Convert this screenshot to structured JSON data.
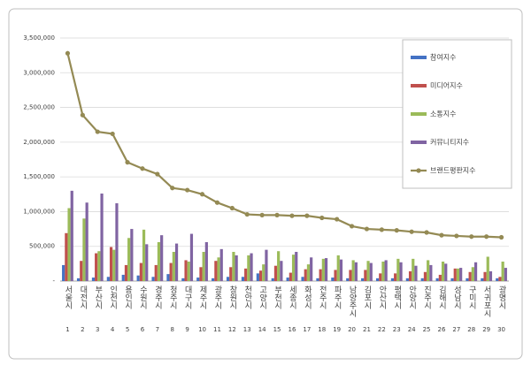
{
  "chart_data": {
    "type": "bar",
    "categories": [
      "서울시",
      "대전시",
      "부산시",
      "인천시",
      "용인시",
      "수원시",
      "경주시",
      "청주시",
      "대구시",
      "제주시",
      "광주시",
      "창원시",
      "천안시",
      "고양시",
      "부천시",
      "세종시",
      "화성시",
      "전주시",
      "파주시",
      "남양주시",
      "김포시",
      "안산시",
      "평택시",
      "안양시",
      "진주시",
      "김해시",
      "성남시",
      "구미시",
      "서귀포시",
      "광명시"
    ],
    "ranks": [
      1,
      2,
      3,
      4,
      5,
      6,
      7,
      8,
      9,
      10,
      11,
      12,
      13,
      14,
      15,
      16,
      17,
      18,
      19,
      20,
      21,
      22,
      23,
      24,
      25,
      26,
      27,
      28,
      29,
      30
    ],
    "series": [
      {
        "name": "참여지수",
        "color": "#4472c4",
        "values": [
          230000,
          40000,
          50000,
          60000,
          90000,
          80000,
          60000,
          100000,
          40000,
          50000,
          40000,
          60000,
          60000,
          110000,
          40000,
          50000,
          60000,
          40000,
          50000,
          40000,
          40000,
          40000,
          40000,
          40000,
          40000,
          40000,
          40000,
          40000,
          40000,
          40000
        ]
      },
      {
        "name": "미디어지수",
        "color": "#c0504d",
        "values": [
          690000,
          290000,
          400000,
          490000,
          230000,
          260000,
          230000,
          260000,
          300000,
          200000,
          290000,
          200000,
          180000,
          150000,
          220000,
          120000,
          170000,
          170000,
          160000,
          160000,
          160000,
          110000,
          110000,
          140000,
          130000,
          90000,
          180000,
          130000,
          130000,
          60000
        ]
      },
      {
        "name": "소통지수",
        "color": "#9bbb59",
        "values": [
          1050000,
          900000,
          430000,
          450000,
          620000,
          740000,
          560000,
          420000,
          280000,
          420000,
          340000,
          420000,
          370000,
          240000,
          430000,
          380000,
          240000,
          320000,
          370000,
          300000,
          290000,
          280000,
          320000,
          320000,
          300000,
          280000,
          180000,
          200000,
          350000,
          280000
        ]
      },
      {
        "name": "커뮤니티지수",
        "color": "#8064a2",
        "values": [
          1300000,
          1130000,
          1260000,
          1120000,
          750000,
          530000,
          660000,
          540000,
          680000,
          560000,
          460000,
          370000,
          400000,
          450000,
          290000,
          420000,
          340000,
          330000,
          310000,
          270000,
          260000,
          300000,
          270000,
          220000,
          230000,
          250000,
          190000,
          270000,
          140000,
          190000
        ]
      },
      {
        "name": "브랜드평판지수",
        "color": "#948a54",
        "type": "line",
        "values": [
          3280000,
          2390000,
          2150000,
          2120000,
          1710000,
          1620000,
          1540000,
          1340000,
          1310000,
          1250000,
          1130000,
          1050000,
          960000,
          950000,
          950000,
          940000,
          940000,
          910000,
          890000,
          790000,
          750000,
          740000,
          730000,
          710000,
          700000,
          660000,
          650000,
          640000,
          640000,
          630000
        ]
      }
    ],
    "ylim": [
      0,
      3500000
    ],
    "yticks": [
      {
        "value": 0,
        "label": "-"
      },
      {
        "value": 500000,
        "label": "500,000"
      },
      {
        "value": 1000000,
        "label": "1,000,000"
      },
      {
        "value": 1500000,
        "label": "1,500,000"
      },
      {
        "value": 2000000,
        "label": "2,000,000"
      },
      {
        "value": 2500000,
        "label": "2,500,000"
      },
      {
        "value": 3000000,
        "label": "3,000,000"
      },
      {
        "value": 3500000,
        "label": "3,500,000"
      }
    ],
    "grid": true,
    "legend": "right"
  }
}
